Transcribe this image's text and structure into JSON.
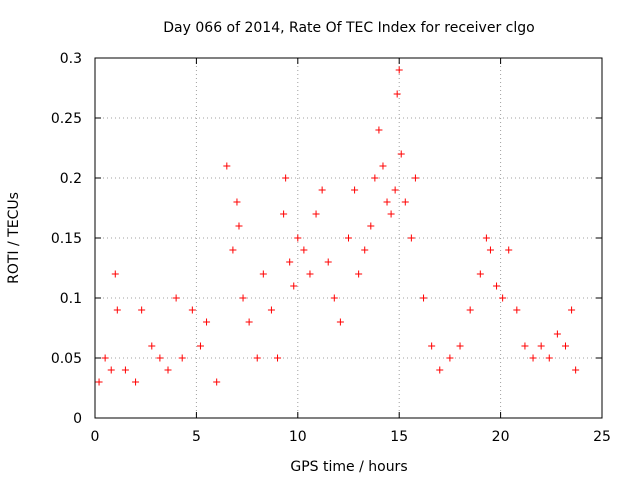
{
  "chart_data": {
    "type": "scatter",
    "title": "Day 066 of 2014, Rate Of TEC Index for receiver clgo",
    "xlabel": "GPS time / hours",
    "ylabel": "ROTI / TECUs",
    "xlim": [
      0,
      25
    ],
    "ylim": [
      0,
      0.3
    ],
    "xticks": [
      0,
      5,
      10,
      15,
      20,
      25
    ],
    "xtick_labels": [
      "0",
      "5",
      "10",
      "15",
      "20",
      "25"
    ],
    "yticks": [
      0,
      0.05,
      0.1,
      0.15,
      0.2,
      0.25,
      0.3
    ],
    "ytick_labels": [
      "0",
      "0.05",
      "0.1",
      "0.15",
      "0.2",
      "0.25",
      "0.3"
    ],
    "grid": true,
    "marker": "+",
    "color": "#ff0000",
    "series": [
      {
        "name": "ROTI",
        "x": [
          0.2,
          0.5,
          0.8,
          1.0,
          1.1,
          1.5,
          2.0,
          2.3,
          2.8,
          3.2,
          3.6,
          4.0,
          4.3,
          4.8,
          5.2,
          5.5,
          6.0,
          6.5,
          6.8,
          7.0,
          7.1,
          7.3,
          7.6,
          8.0,
          8.3,
          8.7,
          9.0,
          9.3,
          9.4,
          9.6,
          9.8,
          10.0,
          10.3,
          10.6,
          10.9,
          11.2,
          11.5,
          11.8,
          12.1,
          12.5,
          12.8,
          13.0,
          13.3,
          13.6,
          13.8,
          14.0,
          14.2,
          14.4,
          14.6,
          14.8,
          14.9,
          15.0,
          15.1,
          15.3,
          15.6,
          15.8,
          16.2,
          16.6,
          17.0,
          17.5,
          18.0,
          18.5,
          19.0,
          19.3,
          19.5,
          19.8,
          20.1,
          20.4,
          20.8,
          21.2,
          21.6,
          22.0,
          22.4,
          22.8,
          23.2,
          23.5,
          23.7
        ],
        "y": [
          0.03,
          0.05,
          0.04,
          0.12,
          0.09,
          0.04,
          0.03,
          0.09,
          0.06,
          0.05,
          0.04,
          0.1,
          0.05,
          0.09,
          0.06,
          0.08,
          0.03,
          0.21,
          0.14,
          0.18,
          0.16,
          0.1,
          0.08,
          0.05,
          0.12,
          0.09,
          0.05,
          0.17,
          0.2,
          0.13,
          0.11,
          0.15,
          0.14,
          0.12,
          0.17,
          0.19,
          0.13,
          0.1,
          0.08,
          0.15,
          0.19,
          0.12,
          0.14,
          0.16,
          0.2,
          0.24,
          0.21,
          0.18,
          0.17,
          0.19,
          0.27,
          0.29,
          0.22,
          0.18,
          0.15,
          0.2,
          0.1,
          0.06,
          0.04,
          0.05,
          0.06,
          0.09,
          0.12,
          0.15,
          0.14,
          0.11,
          0.1,
          0.14,
          0.09,
          0.06,
          0.05,
          0.06,
          0.05,
          0.07,
          0.06,
          0.09,
          0.04
        ]
      }
    ]
  }
}
